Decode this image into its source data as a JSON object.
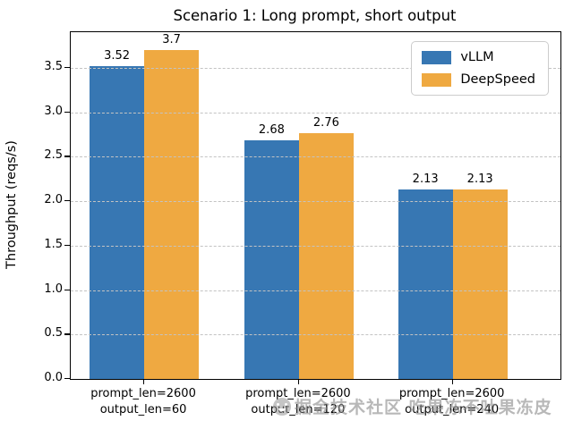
{
  "title": "Scenario 1: Long prompt, short output",
  "watermark": {
    "logo": "wechat-face-logo",
    "text": "掘金技术社区 吃果冻不吐果冻皮"
  },
  "chart_data": {
    "type": "bar",
    "title": "Scenario 1: Long prompt, short output",
    "xlabel": "",
    "ylabel": "Throughput (reqs/s)",
    "ylim": [
      0,
      3.9
    ],
    "yticks": [
      "0.0",
      "0.5",
      "1.0",
      "1.5",
      "2.0",
      "2.5",
      "3.0",
      "3.5"
    ],
    "grid": "horizontal-dashed",
    "legend_position": "upper right",
    "categories": [
      {
        "line1": "prompt_len=2600",
        "line2": "output_len=60"
      },
      {
        "line1": "prompt_len=2600",
        "line2": "output_len=120"
      },
      {
        "line1": "prompt_len=2600",
        "line2": "output_len=240"
      }
    ],
    "group_centers_pct": [
      15.0,
      46.6,
      78.0
    ],
    "series": [
      {
        "name": "vLLM",
        "color": "#3777B3",
        "values": [
          3.52,
          2.68,
          2.13
        ],
        "labels": [
          "3.52",
          "2.68",
          "2.13"
        ]
      },
      {
        "name": "DeepSpeed",
        "color": "#EFA941",
        "values": [
          3.7,
          2.76,
          2.13
        ],
        "labels": [
          "3.7",
          "2.76",
          "2.13"
        ]
      }
    ]
  }
}
